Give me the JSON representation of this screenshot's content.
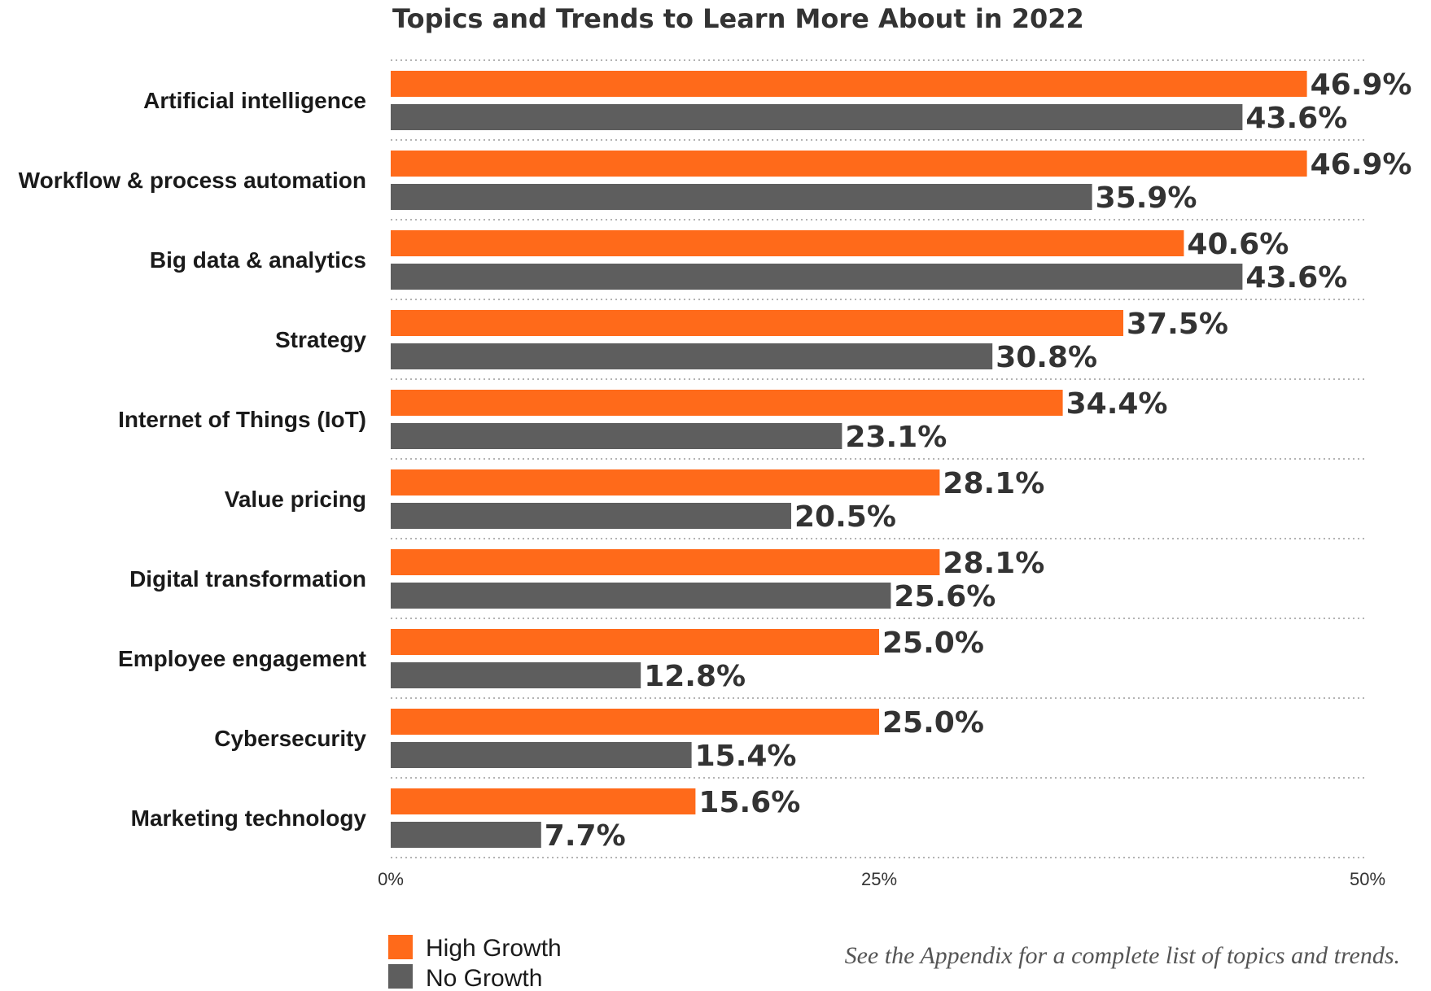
{
  "chart_data": {
    "type": "bar",
    "orientation": "horizontal",
    "title": "Topics and Trends to Learn More About in 2022",
    "categories": [
      "Artificial intelligence",
      "Workflow & process automation",
      "Big data & analytics",
      "Strategy",
      "Internet of Things (IoT)",
      "Value pricing",
      "Digital transformation",
      "Employee engagement",
      "Cybersecurity",
      "Marketing technology"
    ],
    "series": [
      {
        "name": "High Growth",
        "color": "#ff6a1a",
        "values": [
          46.9,
          46.9,
          40.6,
          37.5,
          34.4,
          28.1,
          28.1,
          25.0,
          25.0,
          15.6
        ],
        "labels": [
          "46.9%",
          "46.9%",
          "40.6%",
          "37.5%",
          "34.4%",
          "28.1%",
          "28.1%",
          "25.0%",
          "25.0%",
          "15.6%"
        ]
      },
      {
        "name": "No Growth",
        "color": "#5e5e5e",
        "values": [
          43.6,
          35.9,
          43.6,
          30.8,
          23.1,
          20.5,
          25.6,
          12.8,
          15.4,
          7.7
        ],
        "labels": [
          "43.6%",
          "35.9%",
          "43.6%",
          "30.8%",
          "23.1%",
          "20.5%",
          "25.6%",
          "12.8%",
          "15.4%",
          "7.7%"
        ]
      }
    ],
    "xlim": [
      0,
      50
    ],
    "ticks": [
      0,
      25,
      50
    ],
    "tick_labels": [
      "0%",
      "25%",
      "50%"
    ],
    "grid": true,
    "legend_position": "bottom-left",
    "note": "See the Appendix for a complete list of topics and trends."
  }
}
